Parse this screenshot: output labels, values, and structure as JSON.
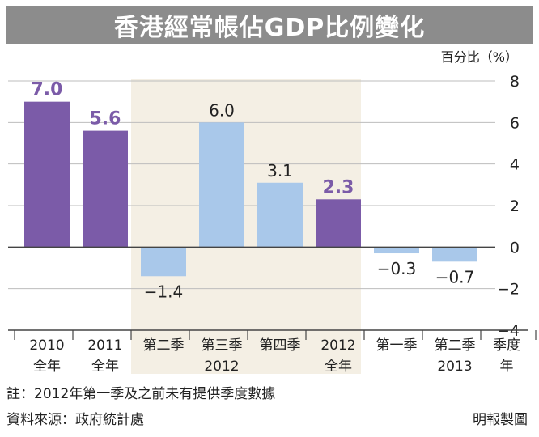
{
  "title": "香港經常帳佔GDP比例變化",
  "unit_label": "百分比（%）",
  "colors": {
    "title_bg": "#8c8c8c",
    "annual": "#7b5ba8",
    "quarterly": "#a9c8ea",
    "shade": "#f4efe4",
    "annual_label": "#7b5ba8",
    "quarter_label": "#222222"
  },
  "chart_data": {
    "type": "bar",
    "ylabel": "百分比（%）",
    "ylim": [
      -4,
      8
    ],
    "yticks": [
      8,
      6,
      4,
      2,
      0,
      -2,
      -4
    ],
    "categories": [
      "2010 全年",
      "2011 全年",
      "2012 第二季",
      "2012 第三季",
      "2012 第四季",
      "2012 全年",
      "2013 第一季",
      "2013 第二季"
    ],
    "values": [
      7.0,
      5.6,
      -1.4,
      6.0,
      3.1,
      2.3,
      -0.3,
      -0.7
    ],
    "value_labels": [
      "7.0",
      "5.6",
      "−1.4",
      "6.0",
      "3.1",
      "2.3",
      "−0.3",
      "−0.7"
    ],
    "kinds": [
      "annual",
      "annual",
      "quarter",
      "quarter",
      "quarter",
      "annual",
      "quarter",
      "quarter"
    ],
    "shaded_range": [
      2,
      5
    ],
    "x_labels_top": [
      "2010",
      "2011",
      "第二季",
      "第三季",
      "第四季",
      "2012",
      "第一季",
      "第二季",
      "季度"
    ],
    "x_labels_bottom": [
      "全年",
      "全年",
      "",
      "2012",
      "",
      "全年",
      "",
      "2013",
      "年"
    ]
  },
  "footnote": "註：2012年第一季及之前未有提供季度數據",
  "source": "資料來源：政府統計處",
  "credit": "明報製圖"
}
